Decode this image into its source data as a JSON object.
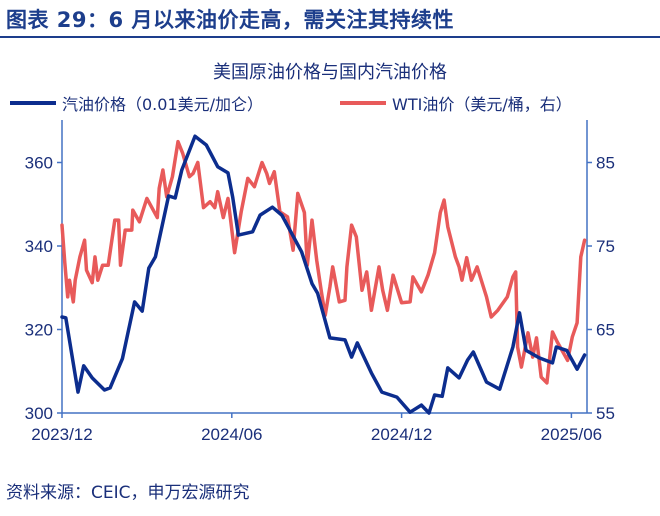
{
  "header": {
    "figure_title": "图表 29：6 月以来油价走高，需关注其持续性"
  },
  "source": "资料来源：CEIC，申万宏源研究",
  "colors": {
    "gasoline": "#0c2d8e",
    "wti": "#e85a5a",
    "axis": "#4472c4"
  },
  "chart_data": {
    "type": "line",
    "title": "美国原油价格与国内汽油价格",
    "legend_position": "top",
    "grid": false,
    "x_tick_labels": [
      "2023/12",
      "2024/06",
      "2024/12",
      "2025/06"
    ],
    "x_ticks": [
      "2023-12-01",
      "2024-06-01",
      "2024-12-01",
      "2025-06-01"
    ],
    "y_left": {
      "ylim": [
        300,
        370
      ],
      "ticks": [
        300,
        320,
        340,
        360
      ]
    },
    "y_right": {
      "ylim": [
        55,
        90
      ],
      "ticks": [
        55,
        65,
        75,
        85
      ]
    },
    "series": [
      {
        "name": "汽油价格（0.01美元/加仑）",
        "axis": "left",
        "points": [
          [
            "2023-12-01",
            323.0
          ],
          [
            "2023-12-05",
            322.8
          ],
          [
            "2023-12-18",
            305.0
          ],
          [
            "2023-12-24",
            311.3
          ],
          [
            "2024-01-03",
            308.4
          ],
          [
            "2024-01-16",
            305.5
          ],
          [
            "2024-01-22",
            306.0
          ],
          [
            "2024-02-05",
            313.0
          ],
          [
            "2024-02-18",
            326.6
          ],
          [
            "2024-02-26",
            324.4
          ],
          [
            "2024-03-03",
            334.7
          ],
          [
            "2024-03-10",
            337.4
          ],
          [
            "2024-03-24",
            352.0
          ],
          [
            "2024-04-01",
            351.5
          ],
          [
            "2024-04-08",
            358.2
          ],
          [
            "2024-04-22",
            366.3
          ],
          [
            "2024-05-04",
            364.2
          ],
          [
            "2024-05-16",
            359.0
          ],
          [
            "2024-05-27",
            357.5
          ],
          [
            "2024-06-02",
            351.7
          ],
          [
            "2024-06-08",
            342.6
          ],
          [
            "2024-06-23",
            343.4
          ],
          [
            "2024-07-01",
            347.4
          ],
          [
            "2024-07-14",
            349.3
          ],
          [
            "2024-07-24",
            347.4
          ],
          [
            "2024-08-15",
            338.6
          ],
          [
            "2024-08-26",
            331.0
          ],
          [
            "2024-09-02",
            328.7
          ],
          [
            "2024-09-15",
            318.0
          ],
          [
            "2024-10-01",
            317.5
          ],
          [
            "2024-10-08",
            313.4
          ],
          [
            "2024-10-14",
            316.8
          ],
          [
            "2024-10-29",
            309.6
          ],
          [
            "2024-11-10",
            305.0
          ],
          [
            "2024-11-26",
            303.8
          ],
          [
            "2024-12-10",
            300.2
          ],
          [
            "2024-12-22",
            301.9
          ],
          [
            "2024-12-30",
            300.0
          ],
          [
            "2025-01-06",
            304.3
          ],
          [
            "2025-01-14",
            304.0
          ],
          [
            "2025-01-20",
            310.8
          ],
          [
            "2025-02-02",
            308.4
          ],
          [
            "2025-02-11",
            312.7
          ],
          [
            "2025-02-17",
            314.6
          ],
          [
            "2025-03-01",
            307.4
          ],
          [
            "2025-03-15",
            305.7
          ],
          [
            "2025-03-29",
            315.8
          ],
          [
            "2025-04-06",
            324.0
          ],
          [
            "2025-04-13",
            315.0
          ],
          [
            "2025-04-27",
            313.2
          ],
          [
            "2025-05-11",
            312.0
          ],
          [
            "2025-05-15",
            315.8
          ],
          [
            "2025-05-26",
            315.0
          ],
          [
            "2025-06-07",
            310.5
          ],
          [
            "2025-06-15",
            313.9
          ]
        ]
      },
      {
        "name": "WTI油价（美元/桶，右）",
        "axis": "right",
        "points": [
          [
            "2023-12-01",
            77.5
          ],
          [
            "2023-12-04",
            73.0
          ],
          [
            "2023-12-07",
            68.9
          ],
          [
            "2023-12-09",
            70.9
          ],
          [
            "2023-12-13",
            68.3
          ],
          [
            "2023-12-15",
            70.9
          ],
          [
            "2023-12-20",
            73.7
          ],
          [
            "2023-12-25",
            75.7
          ],
          [
            "2023-12-27",
            72.1
          ],
          [
            "2024-01-03",
            70.6
          ],
          [
            "2024-01-06",
            73.7
          ],
          [
            "2024-01-09",
            70.9
          ],
          [
            "2024-01-14",
            72.7
          ],
          [
            "2024-01-20",
            72.7
          ],
          [
            "2024-01-27",
            78.1
          ],
          [
            "2024-01-31",
            78.1
          ],
          [
            "2024-02-03",
            72.7
          ],
          [
            "2024-02-08",
            76.9
          ],
          [
            "2024-02-15",
            76.9
          ],
          [
            "2024-02-16",
            79.3
          ],
          [
            "2024-02-23",
            77.9
          ],
          [
            "2024-03-01",
            80.7
          ],
          [
            "2024-03-12",
            78.4
          ],
          [
            "2024-03-14",
            81.9
          ],
          [
            "2024-03-18",
            84.1
          ],
          [
            "2024-03-22",
            80.9
          ],
          [
            "2024-03-28",
            83.3
          ],
          [
            "2024-04-04",
            87.5
          ],
          [
            "2024-04-09",
            86.1
          ],
          [
            "2024-04-16",
            83.3
          ],
          [
            "2024-04-20",
            83.7
          ],
          [
            "2024-04-25",
            85.0
          ],
          [
            "2024-05-01",
            79.6
          ],
          [
            "2024-05-08",
            80.3
          ],
          [
            "2024-05-13",
            79.6
          ],
          [
            "2024-05-16",
            81.5
          ],
          [
            "2024-05-22",
            78.4
          ],
          [
            "2024-05-27",
            80.7
          ],
          [
            "2024-06-04",
            74.2
          ],
          [
            "2024-06-11",
            79.1
          ],
          [
            "2024-06-18",
            83.1
          ],
          [
            "2024-06-25",
            82.1
          ],
          [
            "2024-07-03",
            85.0
          ],
          [
            "2024-07-08",
            83.7
          ],
          [
            "2024-07-11",
            82.5
          ],
          [
            "2024-07-16",
            83.9
          ],
          [
            "2024-07-22",
            79.1
          ],
          [
            "2024-07-30",
            78.5
          ],
          [
            "2024-08-06",
            74.5
          ],
          [
            "2024-08-11",
            81.3
          ],
          [
            "2024-08-18",
            79.0
          ],
          [
            "2024-08-21",
            72.7
          ],
          [
            "2024-08-26",
            78.1
          ],
          [
            "2024-09-01",
            73.3
          ],
          [
            "2024-09-06",
            69.5
          ],
          [
            "2024-09-10",
            66.7
          ],
          [
            "2024-09-15",
            70.1
          ],
          [
            "2024-09-18",
            72.5
          ],
          [
            "2024-09-25",
            68.3
          ],
          [
            "2024-10-01",
            68.5
          ],
          [
            "2024-10-03",
            72.5
          ],
          [
            "2024-10-08",
            77.5
          ],
          [
            "2024-10-13",
            76.1
          ],
          [
            "2024-10-19",
            69.7
          ],
          [
            "2024-10-24",
            71.9
          ],
          [
            "2024-10-29",
            67.3
          ],
          [
            "2024-11-07",
            72.5
          ],
          [
            "2024-11-11",
            69.7
          ],
          [
            "2024-11-16",
            67.3
          ],
          [
            "2024-11-22",
            71.5
          ],
          [
            "2024-12-01",
            68.2
          ],
          [
            "2024-12-10",
            68.3
          ],
          [
            "2024-12-13",
            71.3
          ],
          [
            "2024-12-22",
            69.5
          ],
          [
            "2024-12-29",
            71.5
          ],
          [
            "2025-01-06",
            74.2
          ],
          [
            "2025-01-12",
            79.0
          ],
          [
            "2025-01-16",
            80.5
          ],
          [
            "2025-01-20",
            77.3
          ],
          [
            "2025-01-28",
            73.7
          ],
          [
            "2025-02-02",
            72.5
          ],
          [
            "2025-02-05",
            70.9
          ],
          [
            "2025-02-10",
            73.6
          ],
          [
            "2025-02-15",
            70.9
          ],
          [
            "2025-02-21",
            72.5
          ],
          [
            "2025-03-01",
            68.9
          ],
          [
            "2025-03-06",
            66.5
          ],
          [
            "2025-03-13",
            67.3
          ],
          [
            "2025-03-23",
            68.9
          ],
          [
            "2025-03-29",
            71.3
          ],
          [
            "2025-04-02",
            71.9
          ],
          [
            "2025-04-04",
            62.9
          ],
          [
            "2025-04-08",
            60.5
          ],
          [
            "2025-04-15",
            64.6
          ],
          [
            "2025-04-20",
            61.7
          ],
          [
            "2025-04-24",
            64.0
          ],
          [
            "2025-04-29",
            59.3
          ],
          [
            "2025-05-05",
            58.6
          ],
          [
            "2025-05-11",
            64.7
          ],
          [
            "2025-05-16",
            63.5
          ],
          [
            "2025-05-27",
            61.3
          ],
          [
            "2025-06-02",
            64.1
          ],
          [
            "2025-06-07",
            65.8
          ],
          [
            "2025-06-11",
            73.7
          ],
          [
            "2025-06-15",
            75.7
          ]
        ]
      }
    ]
  }
}
